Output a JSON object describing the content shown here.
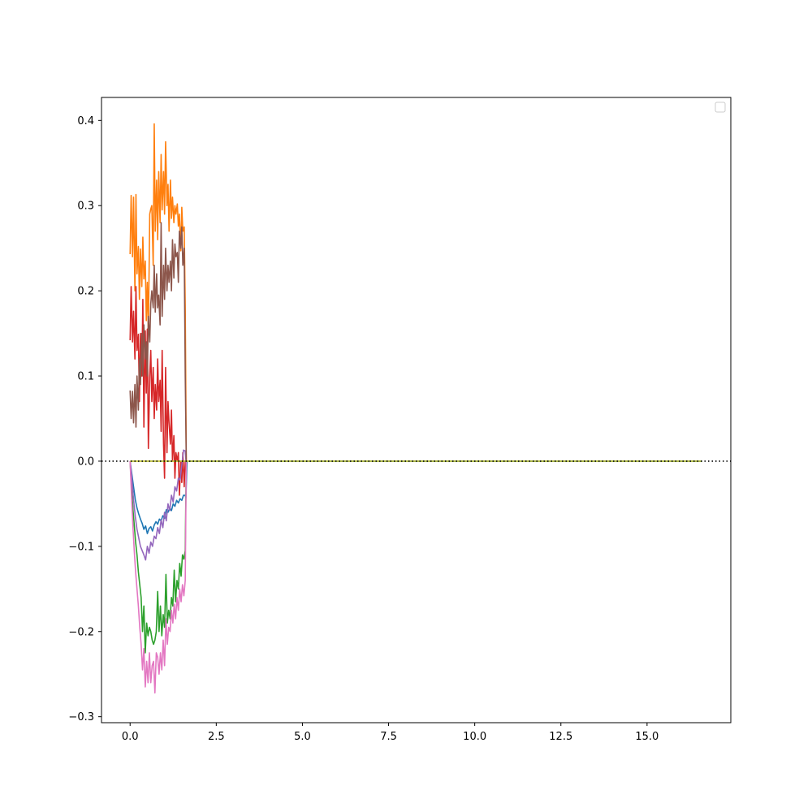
{
  "chart_data": {
    "type": "line",
    "title": "",
    "xlabel": "",
    "ylabel": "",
    "xlim": [
      -0.83,
      17.43
    ],
    "ylim": [
      -0.307,
      0.427
    ],
    "xticks": [
      0,
      2.5,
      5,
      7.5,
      10,
      12.5,
      15
    ],
    "xtick_labels": [
      "0.0",
      "2.5",
      "5.0",
      "7.5",
      "10.0",
      "12.5",
      "15.0"
    ],
    "yticks": [
      -0.3,
      -0.2,
      -0.1,
      0.0,
      0.1,
      0.2,
      0.3,
      0.4
    ],
    "ytick_labels": [
      "−0.3",
      "−0.2",
      "−0.1",
      "0.0",
      "0.1",
      "0.2",
      "0.3",
      "0.4"
    ],
    "grid": false,
    "legend": {
      "position": "top-right",
      "entries": []
    },
    "reference_line": {
      "y": 0.0,
      "style": "dotted",
      "color": "#000000"
    },
    "series": [
      {
        "color": "#1f77b4",
        "x": [
          0,
          0.05,
          0.1,
          0.15,
          0.2,
          0.25,
          0.3,
          0.35,
          0.4,
          0.45,
          0.5,
          0.55,
          0.6,
          0.65,
          0.7,
          0.75,
          0.8,
          0.85,
          0.9,
          0.95,
          1.0,
          1.05,
          1.1,
          1.15,
          1.2,
          1.25,
          1.3,
          1.35,
          1.4,
          1.45,
          1.5,
          1.55,
          1.6,
          1.62,
          1.65,
          16.6
        ],
        "values": [
          0.0,
          -0.015,
          -0.03,
          -0.045,
          -0.055,
          -0.062,
          -0.068,
          -0.073,
          -0.08,
          -0.076,
          -0.085,
          -0.079,
          -0.077,
          -0.082,
          -0.075,
          -0.071,
          -0.074,
          -0.068,
          -0.07,
          -0.064,
          -0.067,
          -0.057,
          -0.06,
          -0.055,
          -0.058,
          -0.05,
          -0.053,
          -0.046,
          -0.049,
          -0.044,
          -0.046,
          -0.04,
          -0.04,
          -0.043,
          0.0,
          0.0
        ]
      },
      {
        "color": "#ff7f0e",
        "x": [
          0,
          0.03,
          0.07,
          0.1,
          0.14,
          0.17,
          0.2,
          0.24,
          0.27,
          0.3,
          0.34,
          0.37,
          0.4,
          0.44,
          0.47,
          0.5,
          0.53,
          0.57,
          0.6,
          0.63,
          0.67,
          0.7,
          0.73,
          0.77,
          0.8,
          0.83,
          0.87,
          0.9,
          0.93,
          0.97,
          1.0,
          1.03,
          1.07,
          1.1,
          1.13,
          1.17,
          1.2,
          1.23,
          1.27,
          1.3,
          1.33,
          1.37,
          1.4,
          1.43,
          1.47,
          1.5,
          1.53,
          1.57,
          1.6,
          1.63
        ],
        "values": [
          0.243,
          0.312,
          0.24,
          0.31,
          0.2,
          0.313,
          0.22,
          0.252,
          0.19,
          0.249,
          0.205,
          0.263,
          0.214,
          0.235,
          0.165,
          0.21,
          0.15,
          0.29,
          0.296,
          0.3,
          0.23,
          0.396,
          0.27,
          0.33,
          0.26,
          0.34,
          0.28,
          0.36,
          0.295,
          0.34,
          0.29,
          0.375,
          0.3,
          0.325,
          0.27,
          0.33,
          0.285,
          0.31,
          0.28,
          0.3,
          0.29,
          0.302,
          0.276,
          0.29,
          0.247,
          0.298,
          0.27,
          0.275,
          0.18,
          0.0
        ]
      },
      {
        "color": "#2ca02c",
        "x": [
          0,
          0.04,
          0.08,
          0.12,
          0.16,
          0.2,
          0.24,
          0.28,
          0.32,
          0.36,
          0.4,
          0.44,
          0.48,
          0.52,
          0.56,
          0.6,
          0.64,
          0.68,
          0.72,
          0.76,
          0.8,
          0.84,
          0.88,
          0.92,
          0.96,
          1.0,
          1.04,
          1.08,
          1.12,
          1.16,
          1.2,
          1.24,
          1.28,
          1.32,
          1.36,
          1.4,
          1.44,
          1.48,
          1.52,
          1.56,
          1.6,
          1.63
        ],
        "values": [
          0.0,
          -0.03,
          -0.055,
          -0.075,
          -0.095,
          -0.11,
          -0.13,
          -0.145,
          -0.16,
          -0.2,
          -0.17,
          -0.225,
          -0.19,
          -0.205,
          -0.195,
          -0.2,
          -0.21,
          -0.215,
          -0.21,
          -0.2,
          -0.153,
          -0.2,
          -0.17,
          -0.205,
          -0.18,
          -0.195,
          -0.133,
          -0.19,
          -0.175,
          -0.185,
          -0.16,
          -0.17,
          -0.128,
          -0.165,
          -0.14,
          -0.15,
          -0.12,
          -0.135,
          -0.11,
          -0.115,
          -0.105,
          0.0
        ]
      },
      {
        "color": "#d62728",
        "x": [
          0,
          0.03,
          0.07,
          0.1,
          0.14,
          0.17,
          0.2,
          0.24,
          0.27,
          0.3,
          0.34,
          0.37,
          0.4,
          0.44,
          0.47,
          0.5,
          0.53,
          0.57,
          0.6,
          0.63,
          0.67,
          0.7,
          0.73,
          0.77,
          0.8,
          0.83,
          0.87,
          0.9,
          0.93,
          0.97,
          1.0,
          1.03,
          1.07,
          1.1,
          1.13,
          1.17,
          1.2,
          1.23,
          1.27,
          1.3,
          1.33,
          1.37,
          1.4,
          1.43,
          1.47,
          1.5,
          1.53,
          1.57,
          1.6,
          1.63
        ],
        "values": [
          0.142,
          0.205,
          0.14,
          0.176,
          0.12,
          0.205,
          0.13,
          0.149,
          0.07,
          0.15,
          0.1,
          0.19,
          0.04,
          0.153,
          0.08,
          0.155,
          0.015,
          0.1,
          0.13,
          0.07,
          0.11,
          0.05,
          0.09,
          0.06,
          0.12,
          0.07,
          0.095,
          0.035,
          0.13,
          0.02,
          -0.02,
          0.11,
          0.01,
          0.07,
          0.045,
          0.02,
          0.06,
          0.0,
          0.03,
          -0.02,
          0.01,
          0.0,
          0.01,
          -0.04,
          0.0,
          -0.025,
          0.01,
          -0.03,
          0.0,
          0.0
        ]
      },
      {
        "color": "#9467bd",
        "x": [
          0,
          0.05,
          0.1,
          0.15,
          0.2,
          0.25,
          0.3,
          0.35,
          0.4,
          0.45,
          0.5,
          0.55,
          0.6,
          0.65,
          0.7,
          0.75,
          0.8,
          0.85,
          0.9,
          0.95,
          1.0,
          1.05,
          1.1,
          1.15,
          1.2,
          1.25,
          1.3,
          1.35,
          1.4,
          1.45,
          1.5,
          1.55,
          1.6,
          1.63
        ],
        "values": [
          0.0,
          -0.02,
          -0.045,
          -0.065,
          -0.08,
          -0.09,
          -0.1,
          -0.105,
          -0.11,
          -0.116,
          -0.1,
          -0.108,
          -0.095,
          -0.1,
          -0.088,
          -0.091,
          -0.078,
          -0.085,
          -0.069,
          -0.078,
          -0.06,
          -0.07,
          -0.05,
          -0.058,
          -0.04,
          -0.048,
          -0.03,
          -0.035,
          -0.02,
          -0.022,
          -0.005,
          0.013,
          0.012,
          -0.005
        ]
      },
      {
        "color": "#8c564b",
        "x": [
          0,
          0.03,
          0.07,
          0.1,
          0.14,
          0.17,
          0.2,
          0.24,
          0.27,
          0.3,
          0.34,
          0.37,
          0.4,
          0.44,
          0.47,
          0.5,
          0.53,
          0.57,
          0.6,
          0.63,
          0.67,
          0.7,
          0.73,
          0.77,
          0.8,
          0.83,
          0.87,
          0.9,
          0.93,
          0.97,
          1.0,
          1.03,
          1.07,
          1.1,
          1.13,
          1.17,
          1.2,
          1.23,
          1.27,
          1.3,
          1.33,
          1.37,
          1.4,
          1.43,
          1.47,
          1.5,
          1.53,
          1.57,
          1.6,
          1.63
        ],
        "values": [
          0.083,
          0.05,
          0.082,
          0.045,
          0.09,
          0.04,
          0.1,
          0.06,
          0.12,
          0.09,
          0.15,
          0.1,
          0.16,
          0.12,
          0.14,
          0.1,
          0.17,
          0.14,
          0.185,
          0.2,
          0.18,
          0.23,
          0.175,
          0.22,
          0.18,
          0.195,
          0.16,
          0.28,
          0.17,
          0.23,
          0.19,
          0.25,
          0.2,
          0.23,
          0.21,
          0.235,
          0.2,
          0.26,
          0.215,
          0.255,
          0.24,
          0.245,
          0.21,
          0.27,
          0.25,
          0.275,
          0.23,
          0.25,
          0.1,
          0.0
        ]
      },
      {
        "color": "#e377c2",
        "x": [
          0,
          0.04,
          0.08,
          0.12,
          0.16,
          0.2,
          0.24,
          0.28,
          0.32,
          0.36,
          0.4,
          0.44,
          0.48,
          0.52,
          0.56,
          0.6,
          0.64,
          0.68,
          0.72,
          0.76,
          0.8,
          0.84,
          0.88,
          0.92,
          0.96,
          1.0,
          1.04,
          1.08,
          1.12,
          1.16,
          1.2,
          1.24,
          1.28,
          1.32,
          1.36,
          1.4,
          1.44,
          1.48,
          1.52,
          1.56,
          1.6,
          1.63
        ],
        "values": [
          0.0,
          -0.04,
          -0.075,
          -0.105,
          -0.13,
          -0.15,
          -0.17,
          -0.195,
          -0.215,
          -0.245,
          -0.22,
          -0.265,
          -0.235,
          -0.26,
          -0.225,
          -0.26,
          -0.24,
          -0.235,
          -0.272,
          -0.225,
          -0.23,
          -0.25,
          -0.225,
          -0.245,
          -0.21,
          -0.24,
          -0.185,
          -0.215,
          -0.195,
          -0.2,
          -0.175,
          -0.19,
          -0.168,
          -0.185,
          -0.16,
          -0.175,
          -0.15,
          -0.165,
          -0.145,
          -0.158,
          -0.14,
          0.0
        ]
      },
      {
        "color": "#bcbd22",
        "x": [
          0,
          16.6
        ],
        "values": [
          0.0,
          0.0
        ]
      }
    ]
  }
}
